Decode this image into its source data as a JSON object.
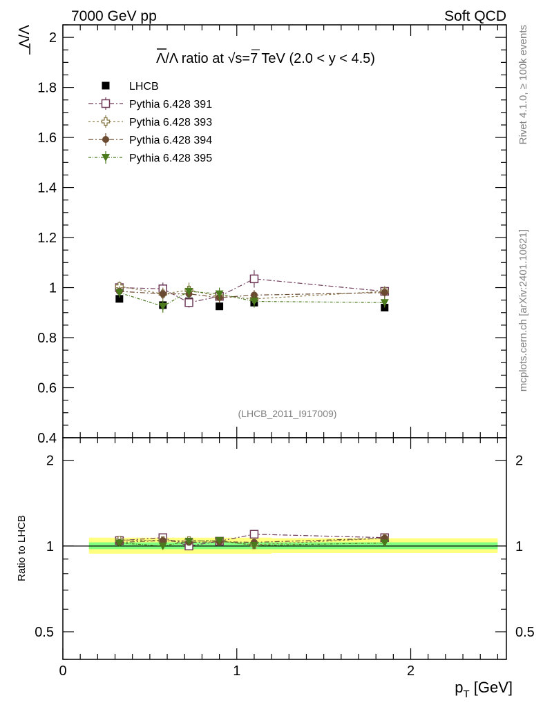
{
  "header": {
    "left": "7000 GeV pp",
    "right": "Soft QCD"
  },
  "side_labels": {
    "rivet": "Rivet 4.1.0, ≥ 100k events",
    "mcplots": "mcplots.cern.ch [arXiv:2401.10621]"
  },
  "chart_data": {
    "type": "scatter",
    "title": "Λ̅/Λ ratio at √s=7 TeV (2.0 < y < 4.5)",
    "title_parts": {
      "lam_bar": "Λ",
      "mid": "/Λ ratio at ",
      "sqrt": "√",
      "rest": "s=7 TeV (2.0 < y < 4.5)"
    },
    "ylabel": "Λ/Λ",
    "ylabel_ratio": "Ratio to LHCB",
    "xlabel": "p",
    "xlabel_sub": "T",
    "xlabel_unit": " [GeV]",
    "watermark": "(LHCB_2011_I917009)",
    "xlim": [
      0,
      2.55
    ],
    "ylim": [
      0.4,
      2.05
    ],
    "ratio_ylim": [
      0.4,
      2.4
    ],
    "x_ticks": [
      {
        "v": 0,
        "label": "0"
      },
      {
        "v": 1,
        "label": "1"
      },
      {
        "v": 2,
        "label": "2"
      }
    ],
    "y_ticks": [
      {
        "v": 0.4,
        "label": "0.4"
      },
      {
        "v": 0.6,
        "label": "0.6"
      },
      {
        "v": 0.8,
        "label": "0.8"
      },
      {
        "v": 1.0,
        "label": "1"
      },
      {
        "v": 1.2,
        "label": "1.2"
      },
      {
        "v": 1.4,
        "label": "1.4"
      },
      {
        "v": 1.6,
        "label": "1.6"
      },
      {
        "v": 1.8,
        "label": "1.8"
      },
      {
        "v": 2.0,
        "label": "2"
      }
    ],
    "ratio_ticks": [
      {
        "v": 0.5,
        "label": "0.5"
      },
      {
        "v": 1.0,
        "label": "1"
      },
      {
        "v": 2.0,
        "label": "2"
      }
    ],
    "x": [
      0.325,
      0.575,
      0.725,
      0.9,
      1.1,
      1.85
    ],
    "bands": [
      {
        "x0": 0.15,
        "x1": 1.2,
        "ylo": 0.94,
        "yhi": 1.07,
        "color": "#ffff80"
      },
      {
        "x0": 1.2,
        "x1": 2.5,
        "ylo": 0.945,
        "yhi": 1.065,
        "color": "#ffff80"
      },
      {
        "x0": 0.15,
        "x1": 1.2,
        "ylo": 0.975,
        "yhi": 1.03,
        "color": "#80ff80"
      },
      {
        "x0": 1.2,
        "x1": 2.5,
        "ylo": 0.975,
        "yhi": 1.03,
        "color": "#80ff80"
      }
    ],
    "series": [
      {
        "name": "LHCB",
        "marker": "filled-square",
        "color": "#000000",
        "dash": "",
        "values": [
          0.955,
          0.93,
          0.945,
          0.925,
          0.94,
          0.92
        ],
        "errors": [
          0.01,
          0.012,
          0.012,
          0.01,
          0.012,
          0.012
        ],
        "ratio": [
          1.0,
          1.0,
          1.0,
          1.0,
          1.0,
          1.0
        ],
        "ratio_errors": [
          0,
          0,
          0,
          0,
          0,
          0
        ]
      },
      {
        "name": "Pythia 6.428 391",
        "marker": "open-square",
        "color": "#6e3a58",
        "dash": "7,3,2,3",
        "values": [
          1.0,
          0.995,
          0.94,
          0.965,
          1.035,
          0.985
        ],
        "errors": [
          0.02,
          0.025,
          0.02,
          0.02,
          0.035,
          0.02
        ],
        "ratio": [
          1.045,
          1.07,
          1.0,
          1.04,
          1.1,
          1.07
        ],
        "ratio_errors": [
          0.02,
          0.025,
          0.02,
          0.02,
          0.035,
          0.02
        ]
      },
      {
        "name": "Pythia 6.428 393",
        "marker": "open-cross",
        "color": "#8a7a4a",
        "dash": "3,3",
        "values": [
          1.005,
          0.975,
          0.99,
          0.965,
          0.955,
          0.985
        ],
        "errors": [
          0.02,
          0.025,
          0.03,
          0.02,
          0.03,
          0.02
        ],
        "ratio": [
          1.05,
          1.045,
          1.045,
          1.04,
          1.01,
          1.065
        ],
        "ratio_errors": [
          0.02,
          0.025,
          0.03,
          0.02,
          0.03,
          0.02
        ]
      },
      {
        "name": "Pythia 6.428 394",
        "marker": "filled-circle",
        "color": "#6b4a32",
        "dash": "7,3,2,3",
        "values": [
          0.985,
          0.975,
          0.975,
          0.96,
          0.97,
          0.98
        ],
        "errors": [
          0.02,
          0.02,
          0.02,
          0.02,
          0.02,
          0.02
        ],
        "ratio": [
          1.03,
          1.045,
          1.03,
          1.035,
          1.03,
          1.065
        ],
        "ratio_errors": [
          0.02,
          0.02,
          0.02,
          0.02,
          0.02,
          0.02
        ]
      },
      {
        "name": "Pythia 6.428 395",
        "marker": "filled-triangle-down",
        "color": "#4a7a1c",
        "dash": "4,2,1,2",
        "values": [
          0.98,
          0.925,
          0.985,
          0.975,
          0.945,
          0.94
        ],
        "errors": [
          0.02,
          0.025,
          0.025,
          0.025,
          0.025,
          0.02
        ],
        "ratio": [
          1.025,
          1.0,
          1.04,
          1.045,
          1.005,
          1.025
        ],
        "ratio_errors": [
          0.02,
          0.025,
          0.025,
          0.025,
          0.025,
          0.02
        ]
      }
    ]
  }
}
